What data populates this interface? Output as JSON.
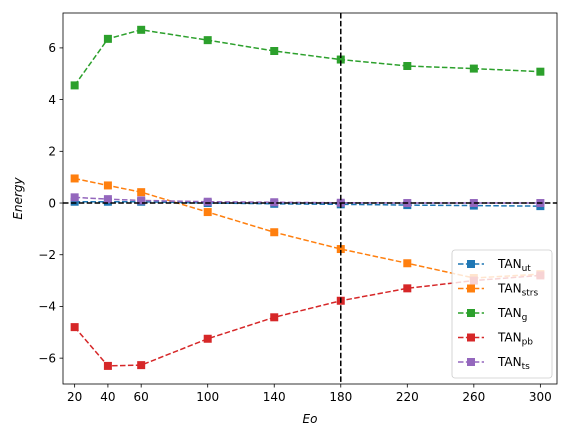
{
  "chart_data": {
    "type": "line",
    "xlabel": "Eo",
    "ylabel": "Energy",
    "x": [
      20,
      40,
      60,
      100,
      140,
      180,
      220,
      260,
      300
    ],
    "xticks": [
      20,
      40,
      60,
      100,
      140,
      180,
      220,
      260,
      300
    ],
    "xtick_labels": [
      "20",
      "40",
      "60",
      "100",
      "140",
      "180",
      "220",
      "260",
      "300"
    ],
    "yticks": [
      -6,
      -4,
      -2,
      0,
      2,
      4,
      6
    ],
    "ytick_labels": [
      "−6",
      "−4",
      "−2",
      "0",
      "2",
      "4",
      "6"
    ],
    "xlim": [
      13,
      310
    ],
    "ylim": [
      -7.0,
      7.35
    ],
    "grid": false,
    "legend_position": "lower-right",
    "reference_lines": {
      "vertical_x": 180,
      "horizontal_y": 0,
      "style": "dashed",
      "color": "#000000"
    },
    "series": [
      {
        "name": "ut",
        "legend_main": "TAN",
        "legend_sub": "ut",
        "color": "#1f77b4",
        "values": [
          0.05,
          0.05,
          0.05,
          0.0,
          -0.03,
          -0.05,
          -0.08,
          -0.1,
          -0.12
        ]
      },
      {
        "name": "strs",
        "legend_main": "TAN",
        "legend_sub": "strs",
        "color": "#ff7f0e",
        "values": [
          0.95,
          0.68,
          0.42,
          -0.35,
          -1.13,
          -1.78,
          -2.33,
          -2.9,
          -2.75
        ]
      },
      {
        "name": "g",
        "legend_main": "TAN",
        "legend_sub": "g",
        "color": "#2ca02c",
        "values": [
          4.55,
          6.35,
          6.7,
          6.3,
          5.88,
          5.55,
          5.3,
          5.2,
          5.08
        ]
      },
      {
        "name": "pb",
        "legend_main": "TAN",
        "legend_sub": "pb",
        "color": "#d62728",
        "values": [
          -4.8,
          -6.3,
          -6.27,
          -5.25,
          -4.42,
          -3.78,
          -3.3,
          -3.0,
          -2.8
        ]
      },
      {
        "name": "ts",
        "legend_main": "TAN",
        "legend_sub": "ts",
        "color": "#9467bd",
        "values": [
          0.22,
          0.15,
          0.1,
          0.05,
          0.03,
          0.01,
          0.0,
          0.0,
          0.0
        ]
      }
    ]
  }
}
